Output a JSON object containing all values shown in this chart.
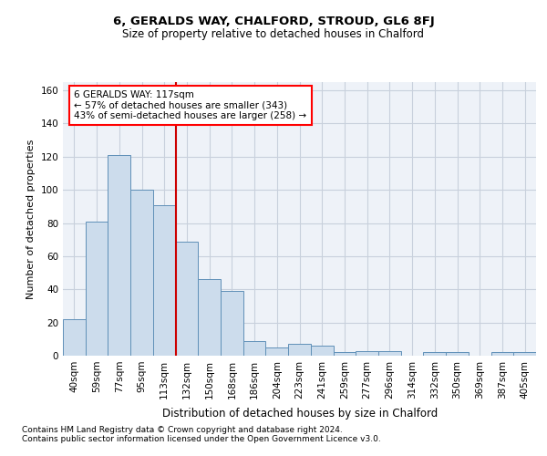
{
  "title1": "6, GERALDS WAY, CHALFORD, STROUD, GL6 8FJ",
  "title2": "Size of property relative to detached houses in Chalford",
  "xlabel": "Distribution of detached houses by size in Chalford",
  "ylabel": "Number of detached properties",
  "footer1": "Contains HM Land Registry data © Crown copyright and database right 2024.",
  "footer2": "Contains public sector information licensed under the Open Government Licence v3.0.",
  "annotation_line1": "6 GERALDS WAY: 117sqm",
  "annotation_line2": "← 57% of detached houses are smaller (343)",
  "annotation_line3": "43% of semi-detached houses are larger (258) →",
  "bar_color": "#ccdcec",
  "bar_edge_color": "#6090b8",
  "grid_color": "#c8d0dc",
  "background_color": "#eef2f8",
  "vline_color": "#cc0000",
  "vline_x": 4.5,
  "categories": [
    "40sqm",
    "59sqm",
    "77sqm",
    "95sqm",
    "113sqm",
    "132sqm",
    "150sqm",
    "168sqm",
    "186sqm",
    "204sqm",
    "223sqm",
    "241sqm",
    "259sqm",
    "277sqm",
    "296sqm",
    "314sqm",
    "332sqm",
    "350sqm",
    "369sqm",
    "387sqm",
    "405sqm"
  ],
  "values": [
    22,
    81,
    121,
    100,
    91,
    69,
    46,
    39,
    9,
    5,
    7,
    6,
    2,
    3,
    3,
    0,
    2,
    2,
    0,
    2,
    2
  ],
  "ylim": [
    0,
    165
  ],
  "yticks": [
    0,
    20,
    40,
    60,
    80,
    100,
    120,
    140,
    160
  ],
  "title1_fontsize": 9.5,
  "title2_fontsize": 8.5,
  "ylabel_fontsize": 8,
  "xlabel_fontsize": 8.5,
  "tick_fontsize": 7.5,
  "footer_fontsize": 6.5,
  "ann_fontsize": 7.5
}
